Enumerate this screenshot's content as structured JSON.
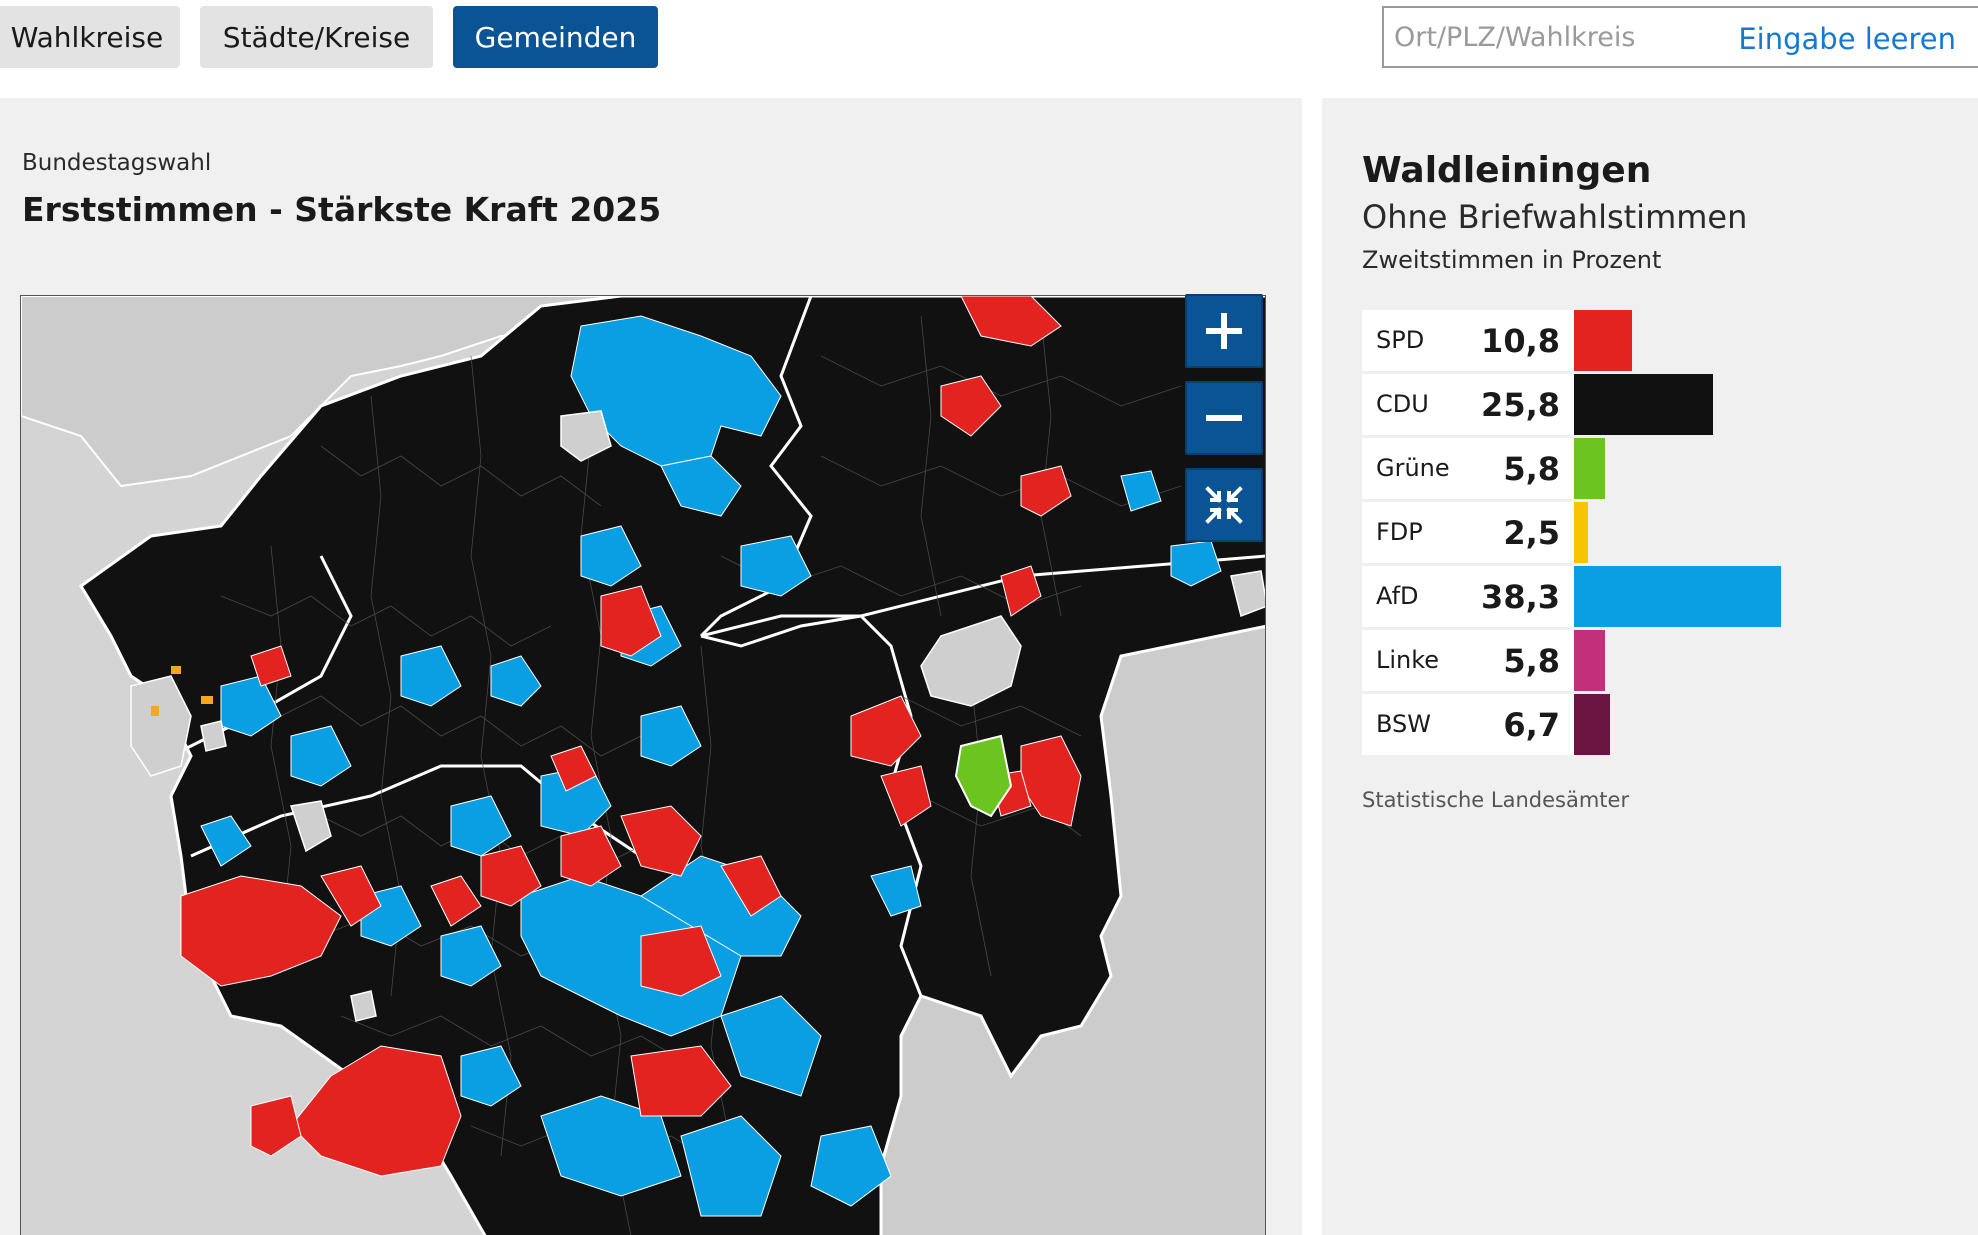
{
  "tabs": [
    {
      "label": "Wahlkreise",
      "active": false
    },
    {
      "label": "Städte/Kreise",
      "active": false
    },
    {
      "label": "Gemeinden",
      "active": true
    }
  ],
  "search": {
    "placeholder": "Ort/PLZ/Wahlkreis",
    "value": "",
    "clear_label": "Eingabe leeren"
  },
  "map": {
    "kicker": "Bundestagswahl",
    "title": "Erststimmen - Stärkste Kraft 2025",
    "controls": {
      "zoom_in": "plus-icon",
      "zoom_out": "minus-icon",
      "reset": "collapse-icon"
    },
    "colors": {
      "cdu": "#111111",
      "afd": "#0a9fe3",
      "spd": "#e3231f",
      "gruene": "#6cc421",
      "fdp": "#f5a623",
      "other": "#cfcfcf",
      "border": "#ffffff"
    }
  },
  "result": {
    "title": "Waldleiningen",
    "subtitle": "Ohne Briefwahlstimmen",
    "unit": "Zweitstimmen in Prozent",
    "source": "Statistische Landesämter",
    "parties": [
      {
        "name": "SPD",
        "value": "10,8",
        "pct": 10.8,
        "color": "#e3231f"
      },
      {
        "name": "CDU",
        "value": "25,8",
        "pct": 25.8,
        "color": "#111111"
      },
      {
        "name": "Grüne",
        "value": "5,8",
        "pct": 5.8,
        "color": "#6cc421"
      },
      {
        "name": "FDP",
        "value": "2,5",
        "pct": 2.5,
        "color": "#f7c400"
      },
      {
        "name": "AfD",
        "value": "38,3",
        "pct": 38.3,
        "color": "#0a9fe3"
      },
      {
        "name": "Linke",
        "value": "5,8",
        "pct": 5.8,
        "color": "#c3307a"
      },
      {
        "name": "BSW",
        "value": "6,7",
        "pct": 6.7,
        "color": "#6b1442"
      }
    ]
  }
}
